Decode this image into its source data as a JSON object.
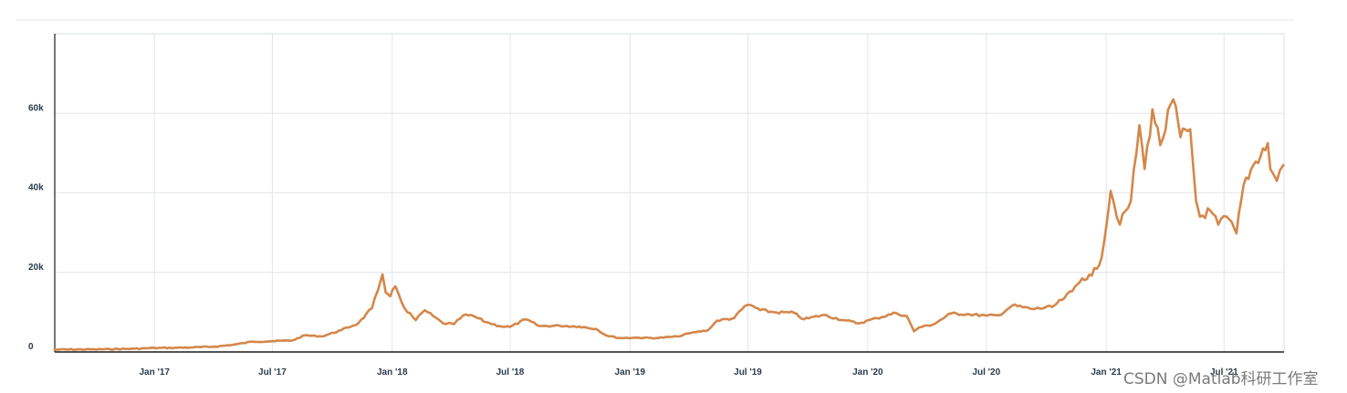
{
  "chart_data": {
    "type": "line",
    "title": "",
    "xlabel": "",
    "ylabel": "",
    "ylim": [
      0,
      80000
    ],
    "xlim": [
      "2016-08-01",
      "2021-10-01"
    ],
    "y_ticks": [
      0,
      20000,
      40000,
      60000
    ],
    "y_tick_labels": [
      "0",
      "20k",
      "40k",
      "60k"
    ],
    "x_ticks": [
      "2017-01-01",
      "2017-07-01",
      "2018-01-01",
      "2018-07-01",
      "2019-01-01",
      "2019-07-01",
      "2020-01-01",
      "2020-07-01",
      "2021-01-01",
      "2021-07-01"
    ],
    "x_tick_labels": [
      "Jan '17",
      "Jul '17",
      "Jan '18",
      "Jul '18",
      "Jan '19",
      "Jul '19",
      "Jan '20",
      "Jul '20",
      "Jan '21",
      "Jul '21"
    ],
    "grid": true,
    "legend": "none",
    "line_color": "#d4874a",
    "series": [
      {
        "x": [
          "2016-08-01",
          "2016-10-01",
          "2016-12-01",
          "2017-01-01",
          "2017-02-01",
          "2017-03-01",
          "2017-04-01",
          "2017-05-01",
          "2017-06-01",
          "2017-07-01",
          "2017-08-01",
          "2017-08-20",
          "2017-09-15",
          "2017-10-15",
          "2017-11-10",
          "2017-12-01",
          "2017-12-10",
          "2017-12-17",
          "2017-12-22",
          "2017-12-29",
          "2018-01-06",
          "2018-01-20",
          "2018-02-06",
          "2018-02-20",
          "2018-03-05",
          "2018-03-20",
          "2018-04-06",
          "2018-04-20",
          "2018-05-06",
          "2018-05-25",
          "2018-06-15",
          "2018-07-01",
          "2018-07-25",
          "2018-08-15",
          "2018-09-15",
          "2018-10-15",
          "2018-11-10",
          "2018-11-25",
          "2018-12-15",
          "2019-01-10",
          "2019-02-10",
          "2019-03-15",
          "2019-04-05",
          "2019-05-01",
          "2019-05-15",
          "2019-06-10",
          "2019-06-26",
          "2019-07-05",
          "2019-07-20",
          "2019-08-10",
          "2019-09-10",
          "2019-09-25",
          "2019-10-25",
          "2019-11-25",
          "2019-12-18",
          "2020-01-15",
          "2020-02-13",
          "2020-03-01",
          "2020-03-12",
          "2020-03-20",
          "2020-04-10",
          "2020-05-08",
          "2020-06-01",
          "2020-07-01",
          "2020-07-20",
          "2020-08-10",
          "2020-09-10",
          "2020-10-10",
          "2020-10-25",
          "2020-11-10",
          "2020-11-25",
          "2020-12-10",
          "2020-12-25",
          "2021-01-08",
          "2021-01-22",
          "2021-02-08",
          "2021-02-21",
          "2021-03-01",
          "2021-03-13",
          "2021-03-25",
          "2021-04-14",
          "2021-04-25",
          "2021-05-10",
          "2021-05-19",
          "2021-05-25",
          "2021-06-10",
          "2021-06-22",
          "2021-07-05",
          "2021-07-20",
          "2021-07-31",
          "2021-08-15",
          "2021-09-06",
          "2021-09-10",
          "2021-09-20",
          "2021-09-30"
        ],
        "y": [
          600,
          650,
          800,
          1000,
          1050,
          1150,
          1300,
          1800,
          2600,
          2700,
          2900,
          4200,
          3900,
          5500,
          7200,
          11000,
          15500,
          19500,
          15000,
          14000,
          16500,
          11000,
          8000,
          10500,
          9000,
          7200,
          7000,
          9200,
          9000,
          7500,
          6500,
          6300,
          8200,
          6500,
          6600,
          6400,
          5800,
          4200,
          3500,
          3600,
          3500,
          3900,
          4800,
          5500,
          7900,
          8500,
          11500,
          11800,
          10500,
          10000,
          9800,
          8200,
          9300,
          8000,
          7200,
          8500,
          9800,
          9000,
          5200,
          6200,
          6900,
          9700,
          9500,
          9100,
          9200,
          11700,
          10800,
          11300,
          13100,
          15300,
          18500,
          19200,
          23700,
          40500,
          32000,
          38000,
          57000,
          46000,
          61000,
          52000,
          63500,
          54000,
          56000,
          38000,
          34000,
          35500,
          32000,
          34000,
          29800,
          42000,
          47000,
          52500,
          46000,
          43000,
          47000
        ]
      }
    ]
  },
  "watermark": {
    "text": "CSDN @Matlab科研工作室"
  }
}
